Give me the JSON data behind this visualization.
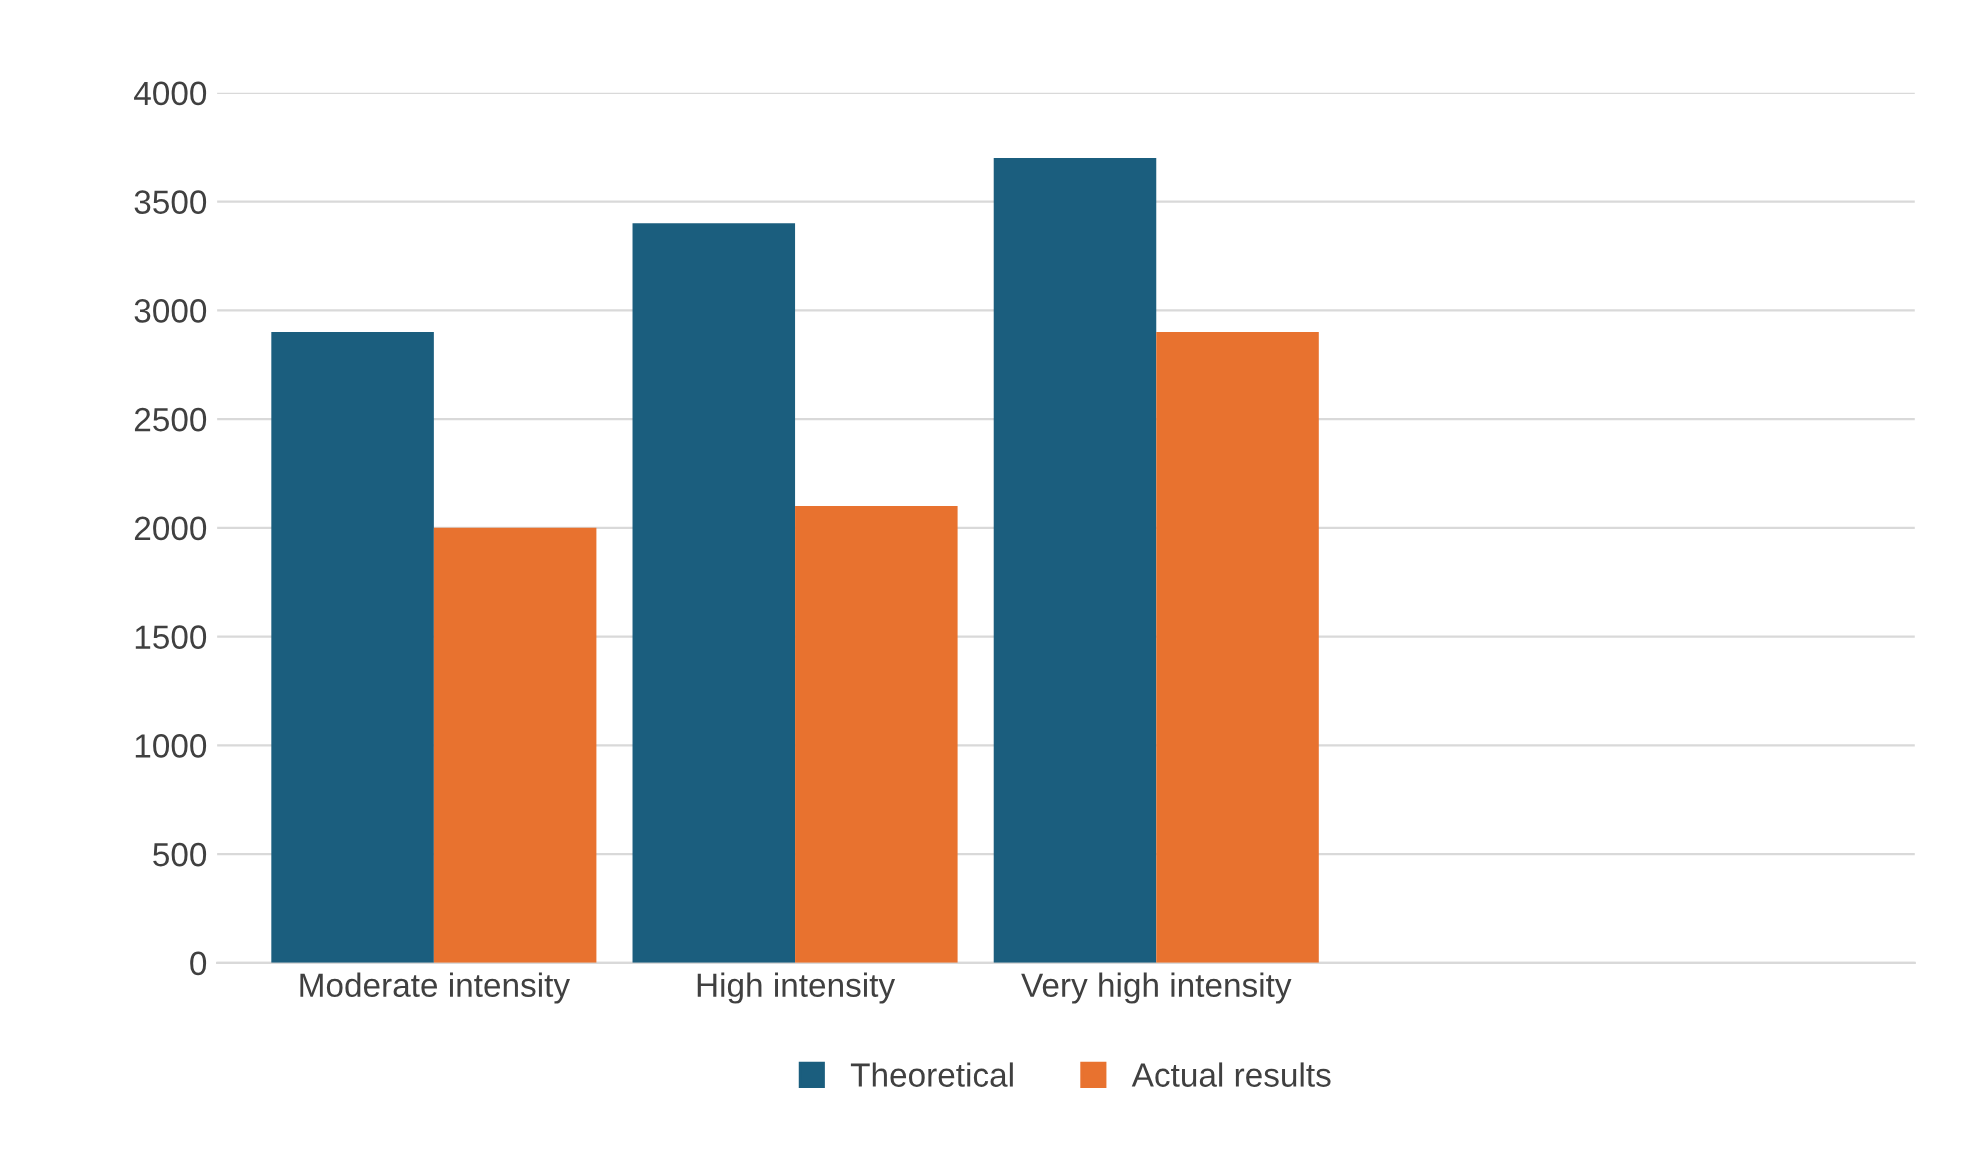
{
  "chart_data": {
    "type": "bar",
    "categories": [
      "Moderate intensity",
      "High intensity",
      "Very high intensity"
    ],
    "series": [
      {
        "name": "Theoretical",
        "color": "#1b5e7e",
        "values": [
          2900,
          3400,
          3700
        ]
      },
      {
        "name": "Actual results",
        "color": "#e8722f",
        "values": [
          2000,
          2100,
          2900
        ]
      }
    ],
    "ylim": [
      0,
      4000
    ],
    "yticks": [
      0,
      500,
      1000,
      1500,
      2000,
      2500,
      3000,
      3500,
      4000
    ],
    "grid": "y",
    "legend": "bottom"
  }
}
